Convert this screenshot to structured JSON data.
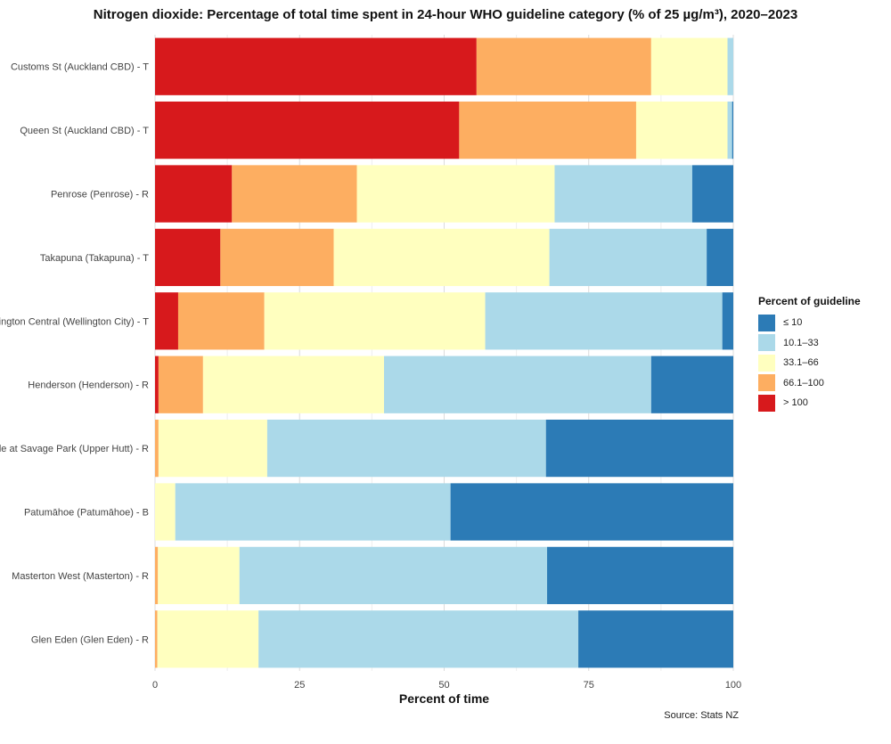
{
  "chart_data": {
    "type": "bar",
    "orientation": "horizontal",
    "stacked": true,
    "title": "Nitrogen dioxide: Percentage of total time spent in 24-hour WHO guideline category (% of 25 µg/m³), 2020–2023",
    "xlabel": "Percent of time",
    "ylabel": "",
    "xlim": [
      0,
      100
    ],
    "xticks": [
      0,
      25,
      50,
      75,
      100
    ],
    "grid": true,
    "legend_position": "right",
    "legend_title": "Percent of guideline",
    "categories": [
      "Customs St (Auckland CBD) - T",
      "Queen St (Auckland CBD) - T",
      "Penrose (Penrose) - R",
      "Takapuna (Takapuna) - T",
      "Wellington Central (Wellington City) - T",
      "Henderson (Henderson) - R",
      "Wallaceville at Savage Park (Upper Hutt) - R",
      "Patumāhoe (Patumāhoe) - B",
      "Masterton West (Masterton) - R",
      "Glen Eden (Glen Eden) - R"
    ],
    "series": [
      {
        "name": "> 100",
        "color": "#d7191c",
        "values": [
          55.6,
          52.6,
          13.3,
          11.3,
          4.0,
          0.6,
          0.0,
          0.0,
          0.0,
          0.0
        ]
      },
      {
        "name": "66.1–100",
        "color": "#fdae61",
        "values": [
          30.2,
          30.6,
          21.6,
          19.6,
          14.9,
          7.7,
          0.6,
          0.0,
          0.5,
          0.4
        ]
      },
      {
        "name": "33.1–66",
        "color": "#ffffbf",
        "values": [
          13.2,
          15.8,
          34.2,
          37.3,
          38.2,
          31.3,
          18.8,
          3.5,
          14.1,
          17.5
        ]
      },
      {
        "name": "10.1–33",
        "color": "#abd9e9",
        "values": [
          1.0,
          0.8,
          23.8,
          27.2,
          41.0,
          46.2,
          48.2,
          47.6,
          53.2,
          55.3
        ]
      },
      {
        "name": "≤ 10",
        "color": "#2c7bb6",
        "values": [
          0.0,
          0.2,
          7.1,
          4.6,
          1.9,
          14.2,
          32.4,
          48.9,
          32.2,
          26.8
        ]
      }
    ],
    "legend_order": [
      "≤ 10",
      "10.1–33",
      "33.1–66",
      "66.1–100",
      "> 100"
    ],
    "source": "Source: Stats NZ"
  }
}
